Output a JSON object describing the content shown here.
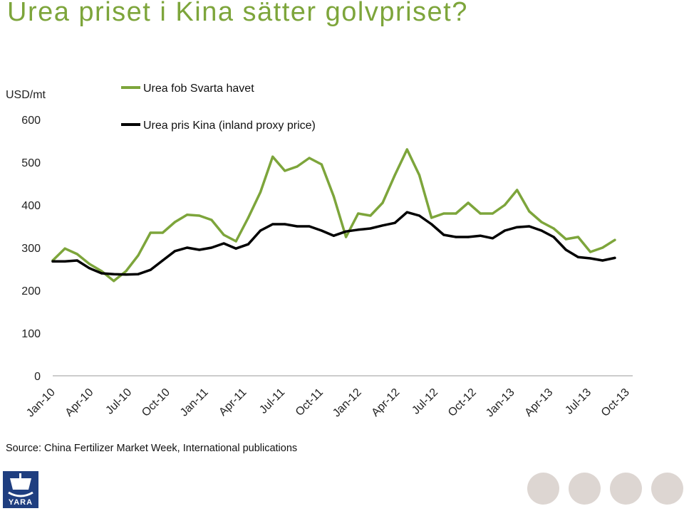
{
  "page": {
    "title": "Urea priset i Kina sätter golvpriset?",
    "source": "Source: China Fertilizer Market Week, International publications",
    "logo_text": "YARA"
  },
  "colors": {
    "title": "#7da53b",
    "series_green": "#7da53b",
    "series_black": "#000000",
    "logo": "#1f3e80",
    "dots": "#ddd6d2"
  },
  "chart_data": {
    "type": "line",
    "ylabel": "USD/mt",
    "ylim": [
      0,
      600
    ],
    "yticks": [
      "0",
      "100",
      "200",
      "300",
      "400",
      "500",
      "600"
    ],
    "xlim": [
      "2010-01",
      "2013-12"
    ],
    "xticks": [
      "Jan-10",
      "Apr-10",
      "Jul-10",
      "Oct-10",
      "Jan-11",
      "Apr-11",
      "Jul-11",
      "Oct-11",
      "Jan-12",
      "Apr-12",
      "Jul-12",
      "Oct-12",
      "Jan-13",
      "Apr-13",
      "Jul-13",
      "Oct-13"
    ],
    "legend_position": "top-left",
    "grid": false,
    "series": [
      {
        "name": "Urea fob Svarta havet",
        "color": "#7da53b",
        "x": [
          "2010-01",
          "2010-02",
          "2010-03",
          "2010-04",
          "2010-05",
          "2010-06",
          "2010-07",
          "2010-08",
          "2010-09",
          "2010-10",
          "2010-11",
          "2010-12",
          "2011-01",
          "2011-02",
          "2011-03",
          "2011-04",
          "2011-05",
          "2011-06",
          "2011-07",
          "2011-08",
          "2011-09",
          "2011-10",
          "2011-11",
          "2011-12",
          "2012-01",
          "2012-02",
          "2012-03",
          "2012-04",
          "2012-05",
          "2012-06",
          "2012-07",
          "2012-08",
          "2012-09",
          "2012-10",
          "2012-11",
          "2012-12",
          "2013-01",
          "2013-02",
          "2013-03",
          "2013-04",
          "2013-05",
          "2013-06",
          "2013-07",
          "2013-08",
          "2013-09",
          "2013-10",
          "2013-11"
        ],
        "values": [
          270,
          298,
          285,
          262,
          245,
          222,
          245,
          282,
          335,
          335,
          360,
          377,
          375,
          365,
          330,
          315,
          370,
          430,
          513,
          480,
          490,
          510,
          495,
          420,
          325,
          380,
          375,
          405,
          470,
          530,
          470,
          370,
          380,
          380,
          405,
          380,
          380,
          400,
          435,
          385,
          360,
          345,
          320,
          325,
          290,
          300,
          318
        ]
      },
      {
        "name": "Urea pris Kina (inland proxy price)",
        "color": "#000000",
        "x": [
          "2010-01",
          "2010-02",
          "2010-03",
          "2010-04",
          "2010-05",
          "2010-06",
          "2010-07",
          "2010-08",
          "2010-09",
          "2010-10",
          "2010-11",
          "2010-12",
          "2011-01",
          "2011-02",
          "2011-03",
          "2011-04",
          "2011-05",
          "2011-06",
          "2011-07",
          "2011-08",
          "2011-09",
          "2011-10",
          "2011-11",
          "2011-12",
          "2012-01",
          "2012-02",
          "2012-03",
          "2012-04",
          "2012-05",
          "2012-06",
          "2012-07",
          "2012-08",
          "2012-09",
          "2012-10",
          "2012-11",
          "2012-12",
          "2013-01",
          "2013-02",
          "2013-03",
          "2013-04",
          "2013-05",
          "2013-06",
          "2013-07",
          "2013-08",
          "2013-09",
          "2013-10",
          "2013-11"
        ],
        "values": [
          268,
          268,
          270,
          252,
          240,
          238,
          237,
          238,
          248,
          270,
          292,
          300,
          295,
          300,
          310,
          298,
          308,
          340,
          355,
          355,
          350,
          350,
          340,
          328,
          338,
          342,
          345,
          352,
          358,
          383,
          375,
          355,
          330,
          325,
          325,
          328,
          322,
          340,
          348,
          350,
          340,
          325,
          295,
          278,
          275,
          270,
          276
        ]
      }
    ]
  }
}
